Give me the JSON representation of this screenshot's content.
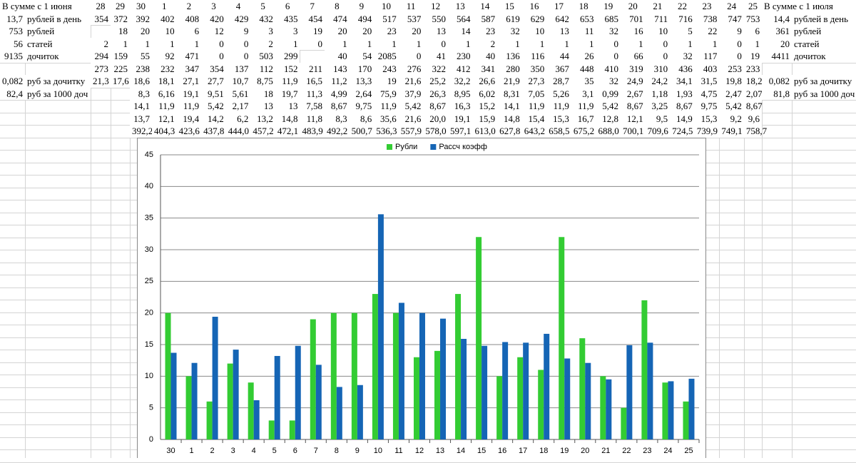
{
  "table": {
    "header": {
      "left": "В сумме с 1 июня",
      "days": [
        28,
        29,
        30,
        1,
        2,
        3,
        4,
        5,
        6,
        7,
        8,
        9,
        10,
        11,
        12,
        13,
        14,
        15,
        16,
        17,
        18,
        19,
        20,
        21,
        22,
        23,
        24,
        25
      ],
      "right": "В сумме с 1 июля"
    },
    "rows": [
      {
        "left_value": "13,7",
        "left_label": "рублей в день",
        "cells": [
          354,
          372,
          392,
          402,
          408,
          420,
          429,
          432,
          435,
          454,
          474,
          494,
          517,
          537,
          550,
          564,
          587,
          619,
          629,
          642,
          653,
          685,
          701,
          711,
          716,
          738,
          747,
          753
        ],
        "right_value": "14,4",
        "right_label": "рублей в день"
      },
      {
        "left_value": 753,
        "left_label": "рублей",
        "cells": [
          null,
          18,
          20,
          10,
          6,
          12,
          9,
          3,
          3,
          19,
          20,
          20,
          23,
          20,
          13,
          14,
          23,
          32,
          10,
          13,
          11,
          32,
          16,
          10,
          5,
          22,
          9,
          6
        ],
        "right_value": 361,
        "right_label": "рублей"
      },
      {
        "left_value": 56,
        "left_label": "статей",
        "cells": [
          2,
          1,
          1,
          1,
          1,
          0,
          0,
          2,
          1,
          0,
          1,
          1,
          1,
          1,
          0,
          1,
          2,
          1,
          1,
          1,
          1,
          0,
          1,
          0,
          1,
          1,
          0,
          1
        ],
        "right_value": 20,
        "right_label": "статей"
      },
      {
        "left_value": 9135,
        "left_label": "дочиток",
        "cells": [
          294,
          159,
          55,
          92,
          471,
          0,
          0,
          503,
          299,
          null,
          40,
          54,
          2085,
          0,
          41,
          230,
          40,
          136,
          116,
          44,
          26,
          0,
          66,
          0,
          32,
          117,
          0,
          19
        ],
        "right_value": 4411,
        "right_label": "дочиток"
      },
      {
        "cells": [
          273,
          225,
          238,
          232,
          347,
          354,
          137,
          112,
          152,
          211,
          143,
          170,
          243,
          276,
          322,
          412,
          341,
          280,
          350,
          367,
          448,
          410,
          319,
          310,
          436,
          403,
          253,
          233
        ]
      },
      {
        "left_value": "0,082",
        "left_label": "руб за дочитку",
        "cells": [
          "21,3",
          "17,6",
          "18,6",
          "18,1",
          "27,1",
          "27,7",
          "10,7",
          "8,75",
          "11,9",
          "16,5",
          "11,2",
          "13,3",
          19,
          "21,6",
          "25,2",
          "32,2",
          "26,6",
          "21,9",
          "27,3",
          "28,7",
          35,
          32,
          "24,9",
          "24,2",
          "34,1",
          "31,5",
          "19,8",
          "18,2"
        ],
        "right_value": "0,082",
        "right_label": "руб за дочитку"
      },
      {
        "left_value": "82,4",
        "left_label": "руб за 1000 доч",
        "cells": [
          null,
          null,
          "8,3",
          "6,16",
          "19,1",
          "9,51",
          "5,61",
          18,
          "19,7",
          "11,3",
          "4,99",
          "2,64",
          "75,9",
          "37,9",
          "26,3",
          "8,95",
          "6,02",
          "8,31",
          "7,05",
          "5,26",
          "3,1",
          "0,99",
          "2,67",
          "1,18",
          "1,93",
          "4,75",
          "2,47",
          "2,07"
        ],
        "right_value": "81,8",
        "right_label": "руб за 1000 доч"
      },
      {
        "cells": [
          null,
          null,
          "14,1",
          "11,9",
          "11,9",
          "5,42",
          "2,17",
          13,
          13,
          "7,58",
          "8,67",
          "9,75",
          "11,9",
          "5,42",
          "8,67",
          "16,3",
          "15,2",
          "14,1",
          "11,9",
          "11,9",
          "11,9",
          "5,42",
          "8,67",
          "3,25",
          "8,67",
          "9,75",
          "5,42",
          "8,67"
        ]
      },
      {
        "cells": [
          null,
          null,
          "13,7",
          "12,1",
          "19,4",
          "14,2",
          "6,2",
          "13,2",
          "14,8",
          "11,8",
          "8,3",
          "8,6",
          "35,6",
          "21,6",
          "20,0",
          "19,1",
          "15,9",
          "14,8",
          "15,4",
          "15,3",
          "16,7",
          "12,8",
          "12,1",
          "9,5",
          "14,9",
          "15,3",
          "9,2",
          "9,6"
        ]
      },
      {
        "cells": [
          null,
          null,
          "392,2",
          "404,3",
          "423,6",
          "437,8",
          "444,0",
          "457,2",
          "472,1",
          "483,9",
          "492,2",
          "500,7",
          "536,3",
          "557,9",
          "578,0",
          "597,1",
          "613,0",
          "627,8",
          "643,2",
          "658,5",
          "675,2",
          "688,0",
          "700,1",
          "709,6",
          "724,5",
          "739,9",
          "749,1",
          "758,7"
        ]
      }
    ]
  },
  "chart_data": {
    "type": "bar",
    "categories": [
      "30",
      "1",
      "2",
      "3",
      "4",
      "5",
      "6",
      "7",
      "8",
      "9",
      "10",
      "11",
      "12",
      "13",
      "14",
      "15",
      "16",
      "17",
      "18",
      "19",
      "20",
      "21",
      "22",
      "23",
      "24",
      "25"
    ],
    "series": [
      {
        "name": "Рубли",
        "color": "#33cc33",
        "values": [
          20,
          10,
          6,
          12,
          9,
          3,
          3,
          19,
          20,
          20,
          23,
          20,
          13,
          14,
          23,
          32,
          10,
          13,
          11,
          32,
          16,
          10,
          5,
          22,
          9,
          6
        ]
      },
      {
        "name": "Рассч коэфф",
        "color": "#1565b5",
        "values": [
          13.7,
          12.1,
          19.4,
          14.2,
          6.2,
          13.2,
          14.8,
          11.8,
          8.3,
          8.6,
          35.6,
          21.6,
          20.0,
          19.1,
          15.9,
          14.8,
          15.4,
          15.3,
          16.7,
          12.8,
          12.1,
          9.5,
          14.9,
          15.3,
          9.2,
          9.6
        ]
      }
    ],
    "ylim": [
      0,
      45
    ],
    "yticks": [
      0,
      5,
      10,
      15,
      20,
      25,
      30,
      35,
      40,
      45
    ],
    "grid": true,
    "legend": "top"
  }
}
